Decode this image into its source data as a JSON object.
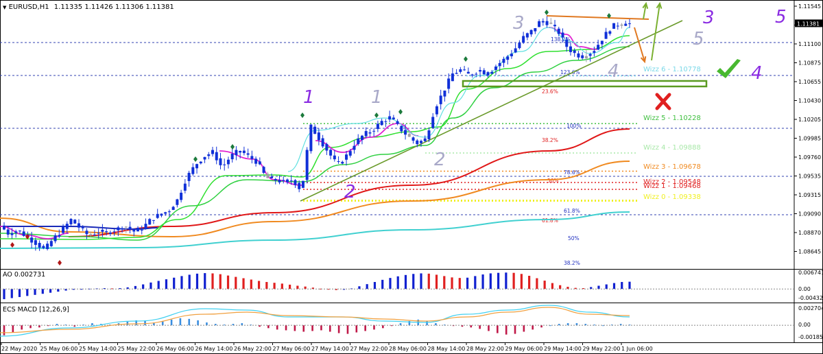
{
  "header": {
    "symbol": "EURUSD,H1",
    "ohlc": "1.11335 1.11426 1.11306 1.11381",
    "current_price": "1.11381"
  },
  "colors": {
    "bull_candle": "#1030d8",
    "bear_candle": "#1030d8",
    "ema_red": "#e01818",
    "ema_orange": "#f08a20",
    "ema_cyan": "#40d0d0",
    "ema_green": "#2ed040",
    "ema_lime": "#30e030",
    "ema_navy": "#1a2ab8",
    "magenta": "#e020d0",
    "trendline": "#6a9a2a",
    "wave_purple": "#8a2be2",
    "wave_grey": "#a8a8c8",
    "ao_up": "#1020d0",
    "ao_down": "#e02020",
    "macd_fast": "#40d0f0",
    "macd_slow": "#f0a040"
  },
  "chart_data": [
    {
      "type": "candlestick",
      "title": "EURUSD,H1",
      "ylim": [
        1.0855,
        1.1163
      ],
      "y_ticks": [
        "1.11545",
        "1.11320",
        "1.11100",
        "1.10875",
        "1.10655",
        "1.10430",
        "1.10205",
        "1.09985",
        "1.09760",
        "1.09535",
        "1.09315",
        "1.09090",
        "1.08870",
        "1.08645"
      ],
      "x_labels": [
        "22 May 2020",
        "25 May 06:00",
        "25 May 14:00",
        "25 May 22:00",
        "26 May 06:00",
        "26 May 14:00",
        "26 May 22:00",
        "27 May 06:00",
        "27 May 14:00",
        "27 May 22:00",
        "28 May 06:00",
        "28 May 14:00",
        "28 May 22:00",
        "29 May 06:00",
        "29 May 14:00",
        "29 May 22:00",
        "1 Jun 06:00"
      ],
      "price_path": [
        1.0905,
        1.0895,
        1.09,
        1.0892,
        1.0885,
        1.0877,
        1.089,
        1.09,
        1.0912,
        1.0902,
        1.0893,
        1.0898,
        1.0897,
        1.09,
        1.0905,
        1.0898,
        1.0902,
        1.0912,
        1.0918,
        1.0922,
        1.0935,
        1.096,
        1.0975,
        1.0985,
        1.099,
        1.0972,
        1.0985,
        1.0992,
        1.0985,
        1.0978,
        1.096,
        1.0958,
        1.0955,
        1.0958,
        1.0945,
        1.102,
        1.1005,
        1.099,
        1.0975,
        1.0985,
        1.1,
        1.101,
        1.1015,
        1.1025,
        1.103,
        1.1018,
        1.1008,
        1.1,
        1.1005,
        1.104,
        1.106,
        1.108,
        1.1085,
        1.1078,
        1.1085,
        1.108,
        1.109,
        1.1098,
        1.1108,
        1.1122,
        1.113,
        1.1142,
        1.1138,
        1.1128,
        1.111,
        1.1102,
        1.11,
        1.1108,
        1.1122,
        1.1135,
        1.1138,
        1.1138
      ],
      "horizontal_levels": [
        {
          "label": "Wizz 6 - 1.10778",
          "value": 1.10778,
          "color": "#7ad8e8"
        },
        {
          "label": "Wizz 5 - 1.10228",
          "value": 1.10228,
          "color": "#40c040"
        },
        {
          "label": "Wizz 4 - 1.09888",
          "value": 1.09888,
          "color": "#a8e8a8"
        },
        {
          "label": "Wizz 3 - 1.09678",
          "value": 1.09678,
          "color": "#f08a20"
        },
        {
          "label": "Wizz 2 - 1.09548",
          "value": 1.09548,
          "color": "#e02020"
        },
        {
          "label": "Wizz 1 - 1.09468",
          "value": 1.09468,
          "color": "#e02020"
        },
        {
          "label": "Wizz 0 - 1.09338",
          "value": 1.09338,
          "color": "#f0f020"
        }
      ],
      "fib_labels": [
        {
          "label": "138.2%",
          "value": 1.1128,
          "color": "#2030c0"
        },
        {
          "label": "123.6%",
          "value": 1.1075,
          "color": "#2030c0"
        },
        {
          "label": "23.6%",
          "value": 1.1062,
          "color": "#e02020"
        },
        {
          "label": "100%",
          "value": 1.1022,
          "color": "#2030c0"
        },
        {
          "label": "38.2%",
          "value": 1.0995,
          "color": "#e02020"
        },
        {
          "label": "78.6%",
          "value": 1.0967,
          "color": "#2030c0"
        },
        {
          "label": "50%",
          "value": 1.0957,
          "color": "#e02020"
        },
        {
          "label": "61.8%",
          "value": 1.0925,
          "color": "#2030c0"
        },
        {
          "label": "61.8%",
          "value": 1.0913,
          "color": "#e02020"
        },
        {
          "label": "50%",
          "value": 1.0896,
          "color": "#2030c0"
        },
        {
          "label": "38.2%",
          "value": 1.0867,
          "color": "#2030c0"
        }
      ],
      "wave_labels": [
        {
          "text": "1",
          "style": "purple"
        },
        {
          "text": "2",
          "style": "purple"
        },
        {
          "text": "1",
          "style": "grey"
        },
        {
          "text": "2",
          "style": "grey"
        },
        {
          "text": "3",
          "style": "grey"
        },
        {
          "text": "4",
          "style": "grey"
        },
        {
          "text": "5",
          "style": "grey"
        },
        {
          "text": "3",
          "style": "purple"
        },
        {
          "text": "4",
          "style": "purple"
        },
        {
          "text": "5",
          "style": "purple"
        }
      ]
    },
    {
      "type": "bar",
      "title": "AO 0.002731",
      "y_ticks": [
        "0.006741",
        "0.00",
        "-0.004325"
      ],
      "ylim": [
        -0.0048,
        0.0072
      ],
      "values": [
        -0.0038,
        -0.0034,
        -0.003,
        -0.0026,
        -0.0022,
        -0.0018,
        -0.0014,
        -0.001,
        -0.0006,
        -0.0003,
        -0.0001,
        0.0001,
        0.0002,
        0.0003,
        0.0002,
        0.0003,
        0.0006,
        0.0011,
        0.0017,
        0.0024,
        0.003,
        0.0036,
        0.0042,
        0.0048,
        0.0053,
        0.0057,
        0.0059,
        0.0058,
        0.0055,
        0.005,
        0.0045,
        0.004,
        0.0035,
        0.003,
        0.0026,
        0.0023,
        0.002,
        0.0016,
        0.0012,
        0.0009,
        0.0005,
        0.0001,
        -0.0002,
        -0.0004,
        -0.0003,
        0.0002,
        0.001,
        0.0018,
        0.0026,
        0.0034,
        0.0041,
        0.0047,
        0.0052,
        0.0056,
        0.0058,
        0.0057,
        0.0053,
        0.0048,
        0.0043,
        0.0041,
        0.0042,
        0.0048,
        0.0054,
        0.0058,
        0.006,
        0.0061,
        0.006,
        0.0056,
        0.0049,
        0.004,
        0.0031,
        0.0022,
        0.0014,
        0.0008,
        0.0004,
        0.0003,
        0.0007,
        0.0012,
        0.0017,
        0.0022,
        0.0026,
        0.0027
      ]
    },
    {
      "type": "bar",
      "title": "ECS MACD [12,26,9]",
      "y_ticks": [
        "0.0027044",
        "0.00",
        "-0.001853"
      ],
      "ylim": [
        -0.0022,
        0.0031
      ],
      "values": [
        -0.0014,
        -0.001,
        -0.0006,
        -0.0004,
        -0.0003,
        -0.0001,
        0.0002,
        0.0001,
        -0.0002,
        0.0001,
        0.0003,
        0.0002,
        0.0001,
        0.0003,
        0.0005,
        0.0007,
        0.0006,
        0.0004,
        0.0006,
        0.0008,
        0.001,
        0.0009,
        0.0007,
        0.0004,
        0.0002,
        0.0001,
        0.0002,
        0.0003,
        0.0001,
        -0.0002,
        -0.0004,
        -0.0006,
        -0.0007,
        -0.0008,
        -0.0009,
        -0.0008,
        -0.0007,
        -0.0009,
        -0.0011,
        -0.0012,
        -0.001,
        -0.0008,
        -0.0006,
        -0.0004,
        -0.0001,
        0.0003,
        0.0006,
        0.0008,
        0.0006,
        0.0003,
        0.0001,
        -0.0001,
        -0.0002,
        -0.0003,
        -0.0005,
        -0.0008,
        -0.0011,
        -0.0013,
        -0.0012,
        -0.0009,
        -0.0006,
        -0.0003,
        0.0,
        0.0002,
        0.0003,
        0.0003,
        0.0002,
        0.0001,
        0.0,
        0.0001,
        0.0002,
        0.0001
      ]
    }
  ]
}
